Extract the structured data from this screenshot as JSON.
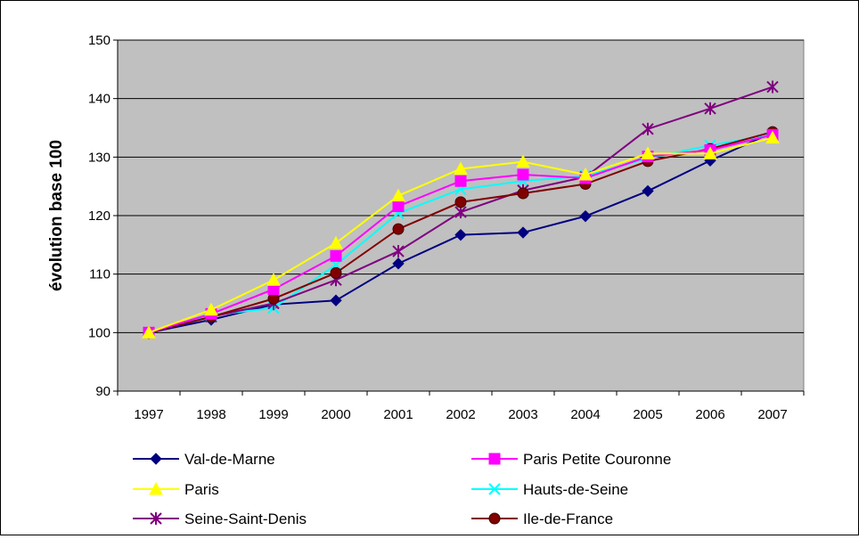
{
  "chart_data": {
    "type": "line",
    "title": "",
    "xlabel": "",
    "ylabel": "évolution base 100",
    "ylim": [
      90,
      150
    ],
    "yticks": [
      90,
      100,
      110,
      120,
      130,
      140,
      150
    ],
    "grid": true,
    "legend_position": "bottom",
    "x": [
      "1997",
      "1998",
      "1999",
      "2000",
      "2001",
      "2002",
      "2003",
      "2004",
      "2005",
      "2006",
      "2007"
    ],
    "series": [
      {
        "name": "Val-de-Marne",
        "color": "#000080",
        "marker": "diamond",
        "values": [
          100,
          102.2,
          104.8,
          105.5,
          111.8,
          116.7,
          117.1,
          119.9,
          124.2,
          129.4,
          134.2
        ]
      },
      {
        "name": "Paris Petite Couronne",
        "color": "#ff00ff",
        "marker": "square",
        "values": [
          100,
          103.2,
          107.4,
          113.1,
          121.6,
          125.9,
          127.0,
          126.4,
          130.1,
          131.2,
          133.8
        ]
      },
      {
        "name": "Paris",
        "color": "#ffff00",
        "marker": "triangle",
        "values": [
          100,
          103.9,
          109.0,
          115.3,
          123.4,
          128.0,
          129.2,
          127.0,
          130.6,
          130.6,
          133.3
        ]
      },
      {
        "name": "Hauts-de-Seine",
        "color": "#00ffff",
        "marker": "x",
        "values": [
          100,
          103.0,
          104.2,
          111.6,
          120.4,
          124.5,
          125.9,
          126.8,
          129.8,
          132.0,
          133.9
        ]
      },
      {
        "name": "Seine-Saint-Denis",
        "color": "#800080",
        "marker": "asterisk",
        "values": [
          100,
          102.7,
          105.0,
          109.0,
          113.9,
          120.6,
          124.3,
          126.6,
          134.8,
          138.3,
          142.0
        ]
      },
      {
        "name": "Ile-de-France",
        "color": "#800000",
        "marker": "circle",
        "values": [
          100,
          102.7,
          105.8,
          110.2,
          117.7,
          122.3,
          123.8,
          125.4,
          129.3,
          131.4,
          134.3
        ]
      }
    ],
    "colors": {
      "plot_background": "#c0c0c0",
      "gridline": "#000000"
    }
  }
}
